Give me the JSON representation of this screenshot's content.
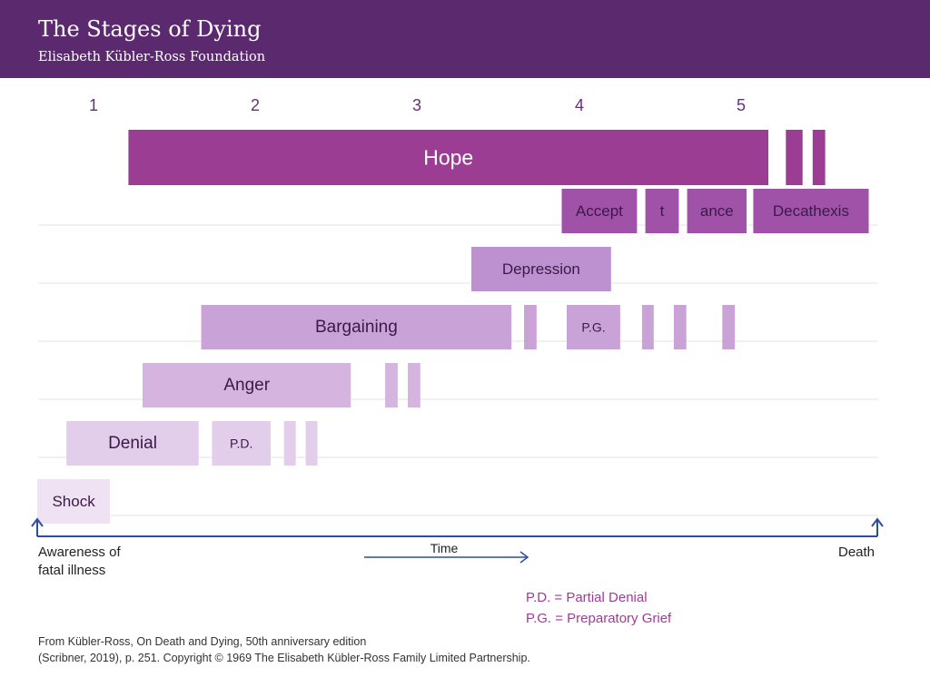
{
  "header": {
    "title": "The Stages of Dying",
    "subtitle": "Elisabeth Kübler-Ross Foundation"
  },
  "stage_numbers": [
    "1",
    "2",
    "3",
    "4",
    "5"
  ],
  "colors": {
    "header_bg": "#5b2a6e",
    "hope": "#9a3d93",
    "acceptance": "#a052a8",
    "depression": "#bd90cf",
    "bargaining": "#c9a2d7",
    "anger": "#d5b5e0",
    "denial": "#e2cdea",
    "shock": "#eee2f3",
    "axis": "#2e4d9e",
    "legend_text": "#a23a9a"
  },
  "bars": [
    {
      "row": "hope",
      "label": "Hope",
      "start": 0.109,
      "end": 0.874,
      "color": "hope",
      "text_color": "#ffffff"
    },
    {
      "row": "hope",
      "label": "",
      "start": 0.895,
      "end": 0.915,
      "color": "hope"
    },
    {
      "row": "hope",
      "label": "",
      "start": 0.927,
      "end": 0.942,
      "color": "hope"
    },
    {
      "row": "acceptance",
      "label": "Accept",
      "start": 0.627,
      "end": 0.717,
      "color": "acceptance"
    },
    {
      "row": "acceptance",
      "label": "t",
      "start": 0.727,
      "end": 0.767,
      "color": "acceptance"
    },
    {
      "row": "acceptance",
      "label": "ance",
      "start": 0.777,
      "end": 0.848,
      "color": "acceptance"
    },
    {
      "row": "acceptance",
      "label": "Decathexis",
      "start": 0.856,
      "end": 0.994,
      "color": "acceptance"
    },
    {
      "row": "depression",
      "label": "Depression",
      "start": 0.519,
      "end": 0.686,
      "color": "depression"
    },
    {
      "row": "bargaining",
      "label": "Bargaining",
      "start": 0.196,
      "end": 0.567,
      "color": "bargaining"
    },
    {
      "row": "bargaining",
      "label": "",
      "start": 0.582,
      "end": 0.597,
      "color": "bargaining"
    },
    {
      "row": "bargaining",
      "label": "P.G.",
      "start": 0.633,
      "end": 0.697,
      "color": "bargaining",
      "small": true
    },
    {
      "row": "bargaining",
      "label": "",
      "start": 0.723,
      "end": 0.737,
      "color": "bargaining"
    },
    {
      "row": "bargaining",
      "label": "",
      "start": 0.761,
      "end": 0.776,
      "color": "bargaining"
    },
    {
      "row": "bargaining",
      "label": "",
      "start": 0.819,
      "end": 0.834,
      "color": "bargaining"
    },
    {
      "row": "anger",
      "label": "Anger",
      "start": 0.126,
      "end": 0.375,
      "color": "anger"
    },
    {
      "row": "anger",
      "label": "",
      "start": 0.416,
      "end": 0.431,
      "color": "anger"
    },
    {
      "row": "anger",
      "label": "",
      "start": 0.443,
      "end": 0.458,
      "color": "anger"
    },
    {
      "row": "denial",
      "label": "Denial",
      "start": 0.035,
      "end": 0.193,
      "color": "denial"
    },
    {
      "row": "denial",
      "label": "P.D.",
      "start": 0.209,
      "end": 0.279,
      "color": "denial",
      "small": true
    },
    {
      "row": "denial",
      "label": "",
      "start": 0.295,
      "end": 0.309,
      "color": "denial"
    },
    {
      "row": "denial",
      "label": "",
      "start": 0.321,
      "end": 0.335,
      "color": "denial"
    },
    {
      "row": "shock",
      "label": "Shock",
      "start": 0.0,
      "end": 0.087,
      "color": "shock"
    }
  ],
  "axis": {
    "left_label_line1": "Awareness of",
    "left_label_line2": "fatal illness",
    "right_label": "Death",
    "time_label": "Time"
  },
  "legend": {
    "pd": "P.D. = Partial Denial",
    "pg": "P.G. = Preparatory Grief"
  },
  "source": {
    "line1": "From Kübler-Ross, On Death and Dying, 50th anniversary edition",
    "line2": "(Scribner, 2019), p. 251. Copyright © 1969 The Elisabeth Kübler-Ross Family Limited Partnership."
  }
}
